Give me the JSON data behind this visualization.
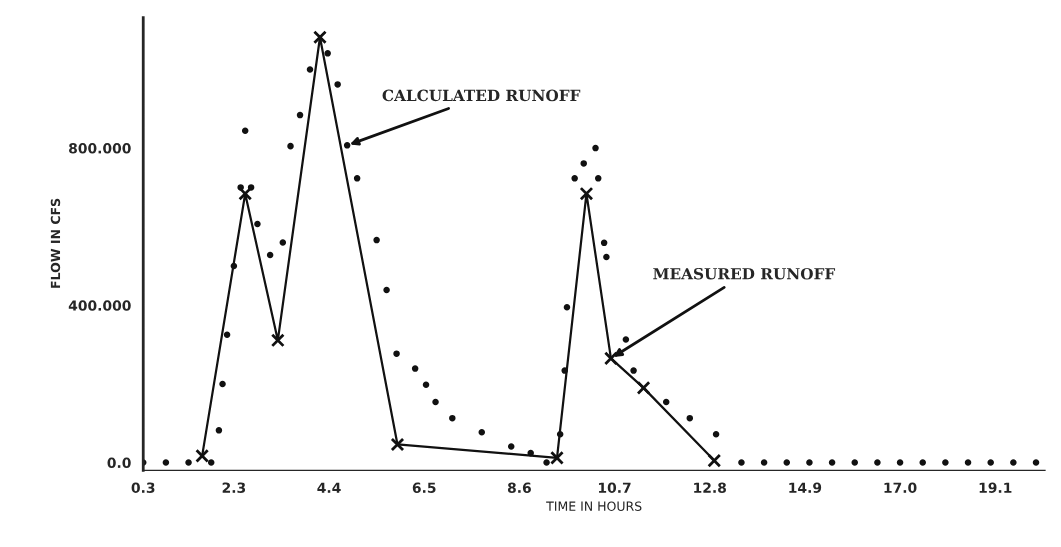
{
  "chart_data": {
    "type": "line",
    "xlabel": "TIME IN HOURS",
    "ylabel": "FLOW IN CFS",
    "xlim": [
      0.3,
      20.2
    ],
    "ylim": [
      -20,
      1135
    ],
    "xticks": [
      0.3,
      2.3,
      4.4,
      6.5,
      8.6,
      10.7,
      12.8,
      14.9,
      {
        "value": 17.0,
        "label": "17.0"
      },
      19.1
    ],
    "yticks": [
      {
        "value": 0,
        "label": "0.0"
      },
      {
        "value": 400,
        "label": "400.000"
      },
      {
        "value": 800,
        "label": "800.000"
      }
    ],
    "grid": false,
    "legend": false,
    "annotations": [
      {
        "text": "CALCULATED RUNOFF",
        "x": 4.8,
        "y": 807
      },
      {
        "text": "MEASURED RUNOFF",
        "x": 10.62,
        "y": 265
      }
    ],
    "series": [
      {
        "type": "scatter",
        "marker": "circle",
        "color": "#111111",
        "x": [
          0.3,
          0.8,
          1.3,
          1.8,
          1.97,
          2.05,
          2.15,
          2.3,
          2.45,
          2.55,
          2.68,
          2.82,
          3.1,
          3.38,
          3.55,
          3.76,
          3.98,
          4.37,
          4.59,
          4.8,
          5.02,
          5.45,
          5.67,
          5.89,
          6.3,
          6.54,
          6.75,
          7.12,
          7.77,
          8.42,
          8.85,
          9.2,
          9.5,
          9.6,
          9.65,
          9.82,
          10.02,
          10.28,
          10.34,
          10.47,
          10.52,
          10.95,
          11.12,
          11.84,
          12.36,
          12.94,
          13.5,
          14.0,
          14.5,
          15.0,
          15.5,
          16.0,
          16.5,
          17.0,
          17.5,
          18.0,
          18.5,
          19.0,
          19.5,
          20.0
        ],
        "values": [
          0,
          0,
          0,
          0,
          82,
          200,
          325,
          500,
          700,
          844,
          700,
          607,
          528,
          560,
          805,
          884,
          1000,
          1041,
          962,
          807,
          723,
          566,
          439,
          277,
          239,
          198,
          154,
          113,
          77,
          41,
          24,
          0,
          72,
          234,
          395,
          723,
          761,
          800,
          723,
          559,
          523,
          313,
          234,
          154,
          113,
          72,
          0,
          0,
          0,
          0,
          0,
          0,
          0,
          0,
          0,
          0,
          0,
          0,
          0,
          0
        ]
      },
      {
        "marker": "cross",
        "line_style": "solid",
        "color": "#111111",
        "x": [
          1.6,
          2.55,
          3.27,
          4.2,
          5.91,
          9.43,
          10.08,
          10.62,
          11.34,
          12.9
        ],
        "values": [
          17,
          684,
          311,
          1082,
          46,
          12,
          684,
          265,
          190,
          5
        ]
      }
    ]
  }
}
